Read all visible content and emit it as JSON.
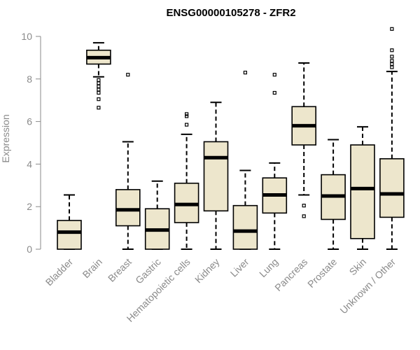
{
  "chart_data": {
    "type": "boxplot",
    "title": "ENSG00000105278 - ZFR2",
    "xlabel": "",
    "ylabel": "Expression",
    "ylim": [
      0,
      10.5
    ],
    "yticks": [
      0,
      2,
      4,
      6,
      8,
      10
    ],
    "box_fill": "#ede6cc",
    "box_stroke": "#000000",
    "outlier_stroke": "#000000",
    "categories": [
      "Bladder",
      "Brain",
      "Breast",
      "Gastric",
      "Hematopoietic cells",
      "Kidney",
      "Liver",
      "Lung",
      "Pancreas",
      "Prostate",
      "Skin",
      "Unknown / Other"
    ],
    "boxes": [
      {
        "category": "Bladder",
        "min": 0,
        "q1": 0,
        "median": 0.8,
        "q3": 1.35,
        "max": 2.55,
        "outliers": []
      },
      {
        "category": "Brain",
        "min": 8.1,
        "q1": 8.7,
        "median": 9.0,
        "q3": 9.35,
        "max": 9.7,
        "outliers": [
          7.95,
          7.8,
          7.65,
          7.5,
          7.35,
          7.05,
          6.65
        ]
      },
      {
        "category": "Breast",
        "min": 0,
        "q1": 1.1,
        "median": 1.85,
        "q3": 2.8,
        "max": 5.05,
        "outliers": [
          8.2
        ]
      },
      {
        "category": "Gastric",
        "min": 0,
        "q1": 0,
        "median": 0.9,
        "q3": 1.9,
        "max": 3.2,
        "outliers": []
      },
      {
        "category": "Hematopoietic cells",
        "min": 0,
        "q1": 1.25,
        "median": 2.1,
        "q3": 3.1,
        "max": 5.4,
        "outliers": [
          5.85,
          6.25,
          6.35
        ]
      },
      {
        "category": "Kidney",
        "min": 0,
        "q1": 1.8,
        "median": 4.3,
        "q3": 5.05,
        "max": 6.9,
        "outliers": []
      },
      {
        "category": "Liver",
        "min": 0,
        "q1": 0,
        "median": 0.85,
        "q3": 2.05,
        "max": 3.7,
        "outliers": [
          8.3
        ]
      },
      {
        "category": "Lung",
        "min": 0,
        "q1": 1.7,
        "median": 2.55,
        "q3": 3.35,
        "max": 4.05,
        "outliers": [
          7.35,
          8.2
        ]
      },
      {
        "category": "Pancreas",
        "min": 2.55,
        "q1": 4.9,
        "median": 5.8,
        "q3": 6.7,
        "max": 8.75,
        "outliers": [
          2.05,
          1.55
        ]
      },
      {
        "category": "Prostate",
        "min": 0,
        "q1": 1.4,
        "median": 2.5,
        "q3": 3.5,
        "max": 5.15,
        "outliers": []
      },
      {
        "category": "Skin",
        "min": 0,
        "q1": 0.5,
        "median": 2.85,
        "q3": 4.9,
        "max": 5.75,
        "outliers": []
      },
      {
        "category": "Unknown / Other",
        "min": 0,
        "q1": 1.5,
        "median": 2.6,
        "q3": 4.25,
        "max": 8.35,
        "outliers": [
          8.55,
          8.7,
          8.85,
          9.05,
          9.35,
          10.35
        ]
      }
    ]
  }
}
